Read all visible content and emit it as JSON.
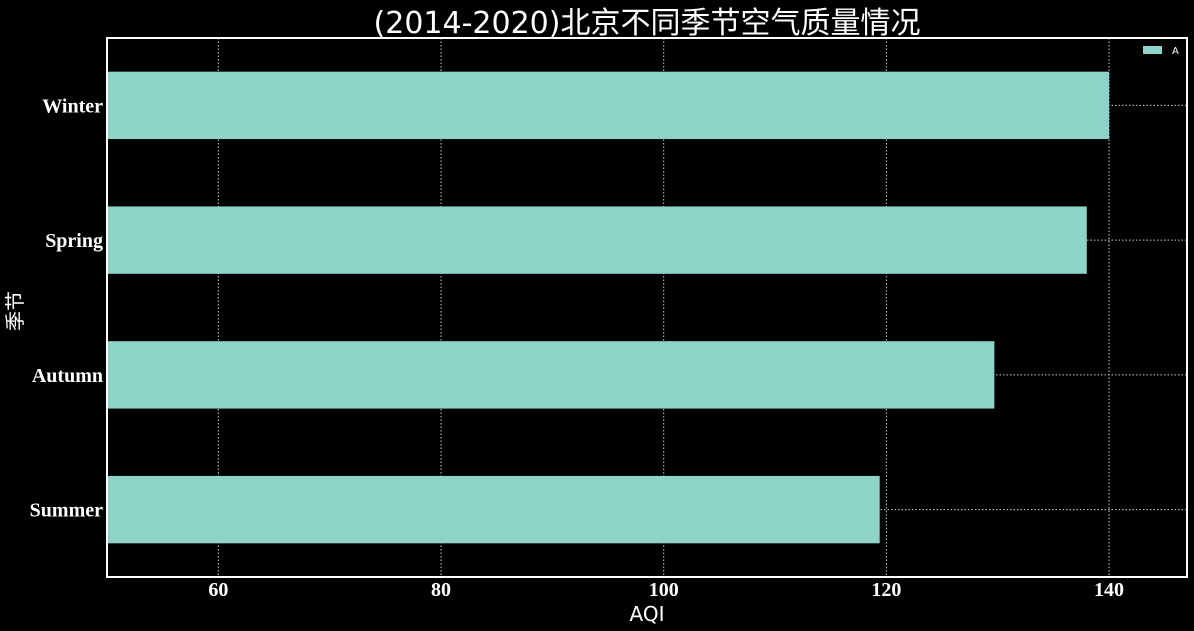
{
  "chart_data": {
    "type": "bar",
    "orientation": "horizontal",
    "title": "(2014-2020)北京不同季节空气质量情况",
    "xlabel": "AQI",
    "ylabel": "季节",
    "categories": [
      "Summer",
      "Autumn",
      "Spring",
      "Winter"
    ],
    "series": [
      {
        "name": "A",
        "values": [
          119.4,
          129.7,
          138.0,
          140.0
        ]
      }
    ],
    "xlim": [
      50,
      147
    ],
    "xticks": [
      60,
      80,
      100,
      120,
      140
    ],
    "grid": true,
    "legend_position": "top-right",
    "colors": {
      "background": "#000000",
      "bar": "#8dd3c7",
      "grid": "#cccccc",
      "axes": "#ffffff",
      "text": "#ffffff"
    }
  }
}
